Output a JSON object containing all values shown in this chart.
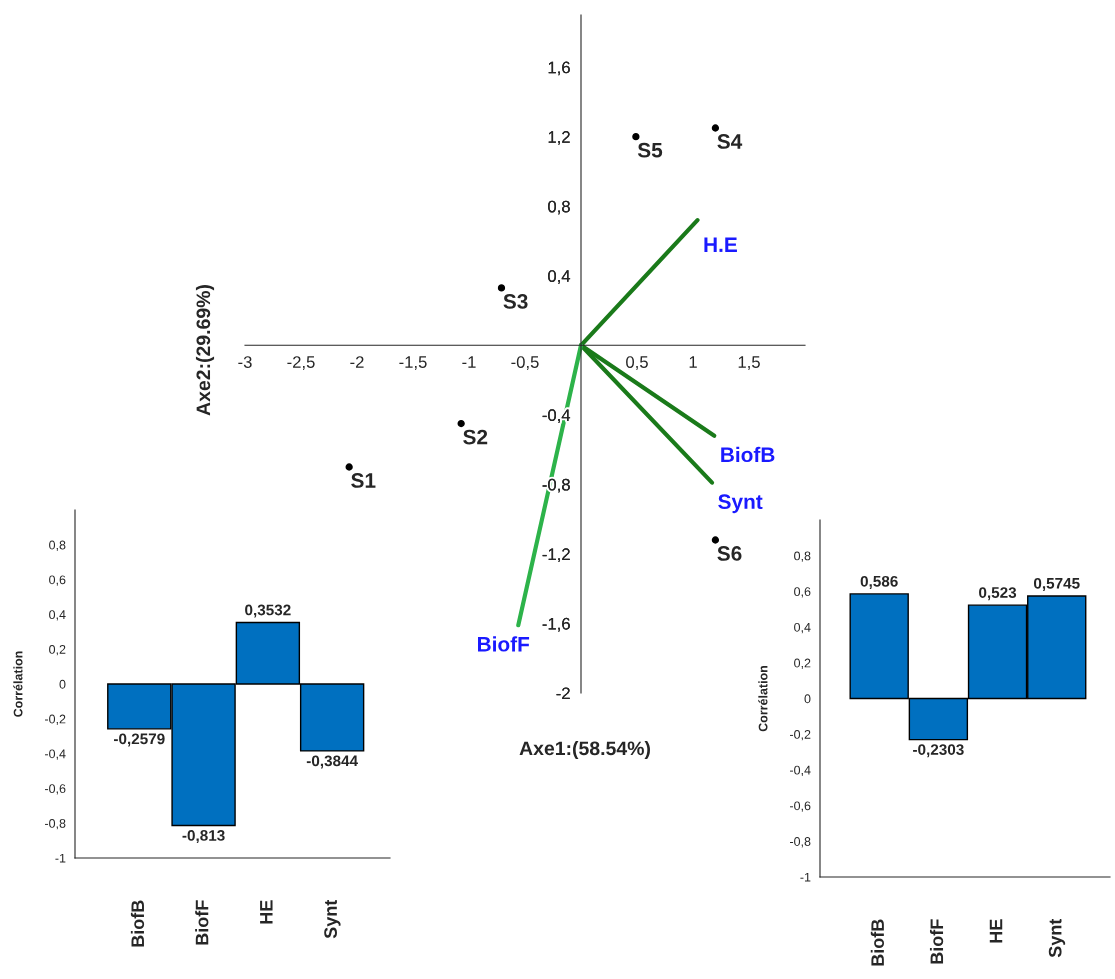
{
  "chart_data": [
    {
      "type": "scatter",
      "xlabel": "Axe1:(58.54%)",
      "ylabel": "Axe2:(29.69%)",
      "xlim": [
        -3,
        2
      ],
      "ylim": [
        -2,
        1.9
      ],
      "xticks": [
        {
          "value": -3,
          "label": "-3"
        },
        {
          "value": -2.5,
          "label": "-2,5"
        },
        {
          "value": -2,
          "label": "-2"
        },
        {
          "value": -1.5,
          "label": "-1,5"
        },
        {
          "value": -1,
          "label": "-1"
        },
        {
          "value": -0.5,
          "label": "-0,5"
        },
        {
          "value": 0.5,
          "label": "0,5"
        },
        {
          "value": 1,
          "label": "1"
        },
        {
          "value": 1.5,
          "label": "1,5"
        }
      ],
      "yticks": [
        {
          "value": 1.6,
          "label": "1,6"
        },
        {
          "value": 1.2,
          "label": "1,2"
        },
        {
          "value": 0.8,
          "label": "0,8"
        },
        {
          "value": 0.4,
          "label": "0,4"
        },
        {
          "value": -0.4,
          "label": "-0,4"
        },
        {
          "value": -0.8,
          "label": "-0,8"
        },
        {
          "value": -1.2,
          "label": "-1,2"
        },
        {
          "value": -1.6,
          "label": "-1,6"
        },
        {
          "value": -2,
          "label": "-2"
        }
      ],
      "series": [
        {
          "type": "scatter",
          "color": "#000000",
          "x": [
            -2.07,
            -1.07,
            -0.71,
            1.2,
            0.49,
            1.2
          ],
          "values": [
            -0.7,
            -0.45,
            0.33,
            1.25,
            1.2,
            -1.12
          ]
        },
        {
          "type": "line",
          "name": "H.E",
          "color": "#1a7a1a",
          "x": [
            0,
            1.04
          ],
          "values": [
            0,
            0.72
          ]
        },
        {
          "type": "line",
          "name": "BiofB",
          "color": "#1a7a1a",
          "x": [
            0,
            1.19
          ],
          "values": [
            0,
            -0.52
          ]
        },
        {
          "type": "line",
          "name": "Synt",
          "color": "#1a7a1a",
          "x": [
            0,
            1.17
          ],
          "values": [
            0,
            -0.79
          ]
        },
        {
          "type": "line",
          "name": "BiofF",
          "color": "#2db34a",
          "x": [
            0,
            -0.56
          ],
          "values": [
            0,
            -1.61
          ]
        }
      ],
      "annotations": [
        {
          "text": "S1",
          "x": -2.07,
          "y": -0.7
        },
        {
          "text": "S2",
          "x": -1.07,
          "y": -0.45
        },
        {
          "text": "S3",
          "x": -0.71,
          "y": 0.33
        },
        {
          "text": "S4",
          "x": 1.2,
          "y": 1.25
        },
        {
          "text": "S5",
          "x": 0.49,
          "y": 1.2
        },
        {
          "text": "S6",
          "x": 1.2,
          "y": -1.12
        }
      ]
    },
    {
      "type": "bar",
      "ylabel": "Corrélation",
      "categories": [
        "BiofB",
        "BiofF",
        "HE",
        "Synt"
      ],
      "values": [
        -0.2579,
        -0.813,
        0.3532,
        -0.3844
      ],
      "value_labels": [
        "-0,2579",
        "-0,813",
        "0,3532",
        "-0,3844"
      ],
      "color": "#0070c0",
      "ylim": [
        -1,
        1
      ],
      "yticks": [
        {
          "value": -1,
          "label": "-1"
        },
        {
          "value": -0.8,
          "label": "-0,8"
        },
        {
          "value": -0.6,
          "label": "-0,6"
        },
        {
          "value": -0.4,
          "label": "-0,4"
        },
        {
          "value": -0.2,
          "label": "-0,2"
        },
        {
          "value": 0,
          "label": "0"
        },
        {
          "value": 0.2,
          "label": "0,2"
        },
        {
          "value": 0.4,
          "label": "0,4"
        },
        {
          "value": 0.6,
          "label": "0,6"
        },
        {
          "value": 0.8,
          "label": "0,8"
        }
      ]
    },
    {
      "type": "bar",
      "ylabel": "Corrélation",
      "categories": [
        "BiofB",
        "BiofF",
        "HE",
        "Synt"
      ],
      "values": [
        0.586,
        -0.2303,
        0.523,
        0.5745
      ],
      "value_labels": [
        "0,586",
        "-0,2303",
        "0,523",
        "0,5745"
      ],
      "color": "#0070c0",
      "ylim": [
        -1,
        1
      ],
      "yticks": [
        {
          "value": -1,
          "label": "-1"
        },
        {
          "value": -0.8,
          "label": "-0,8"
        },
        {
          "value": -0.6,
          "label": "-0,6"
        },
        {
          "value": -0.4,
          "label": "-0,4"
        },
        {
          "value": -0.2,
          "label": "-0,2"
        },
        {
          "value": 0,
          "label": "0"
        },
        {
          "value": 0.2,
          "label": "0,2"
        },
        {
          "value": 0.4,
          "label": "0,4"
        },
        {
          "value": 0.6,
          "label": "0,6"
        },
        {
          "value": 0.8,
          "label": "0,8"
        }
      ]
    }
  ]
}
